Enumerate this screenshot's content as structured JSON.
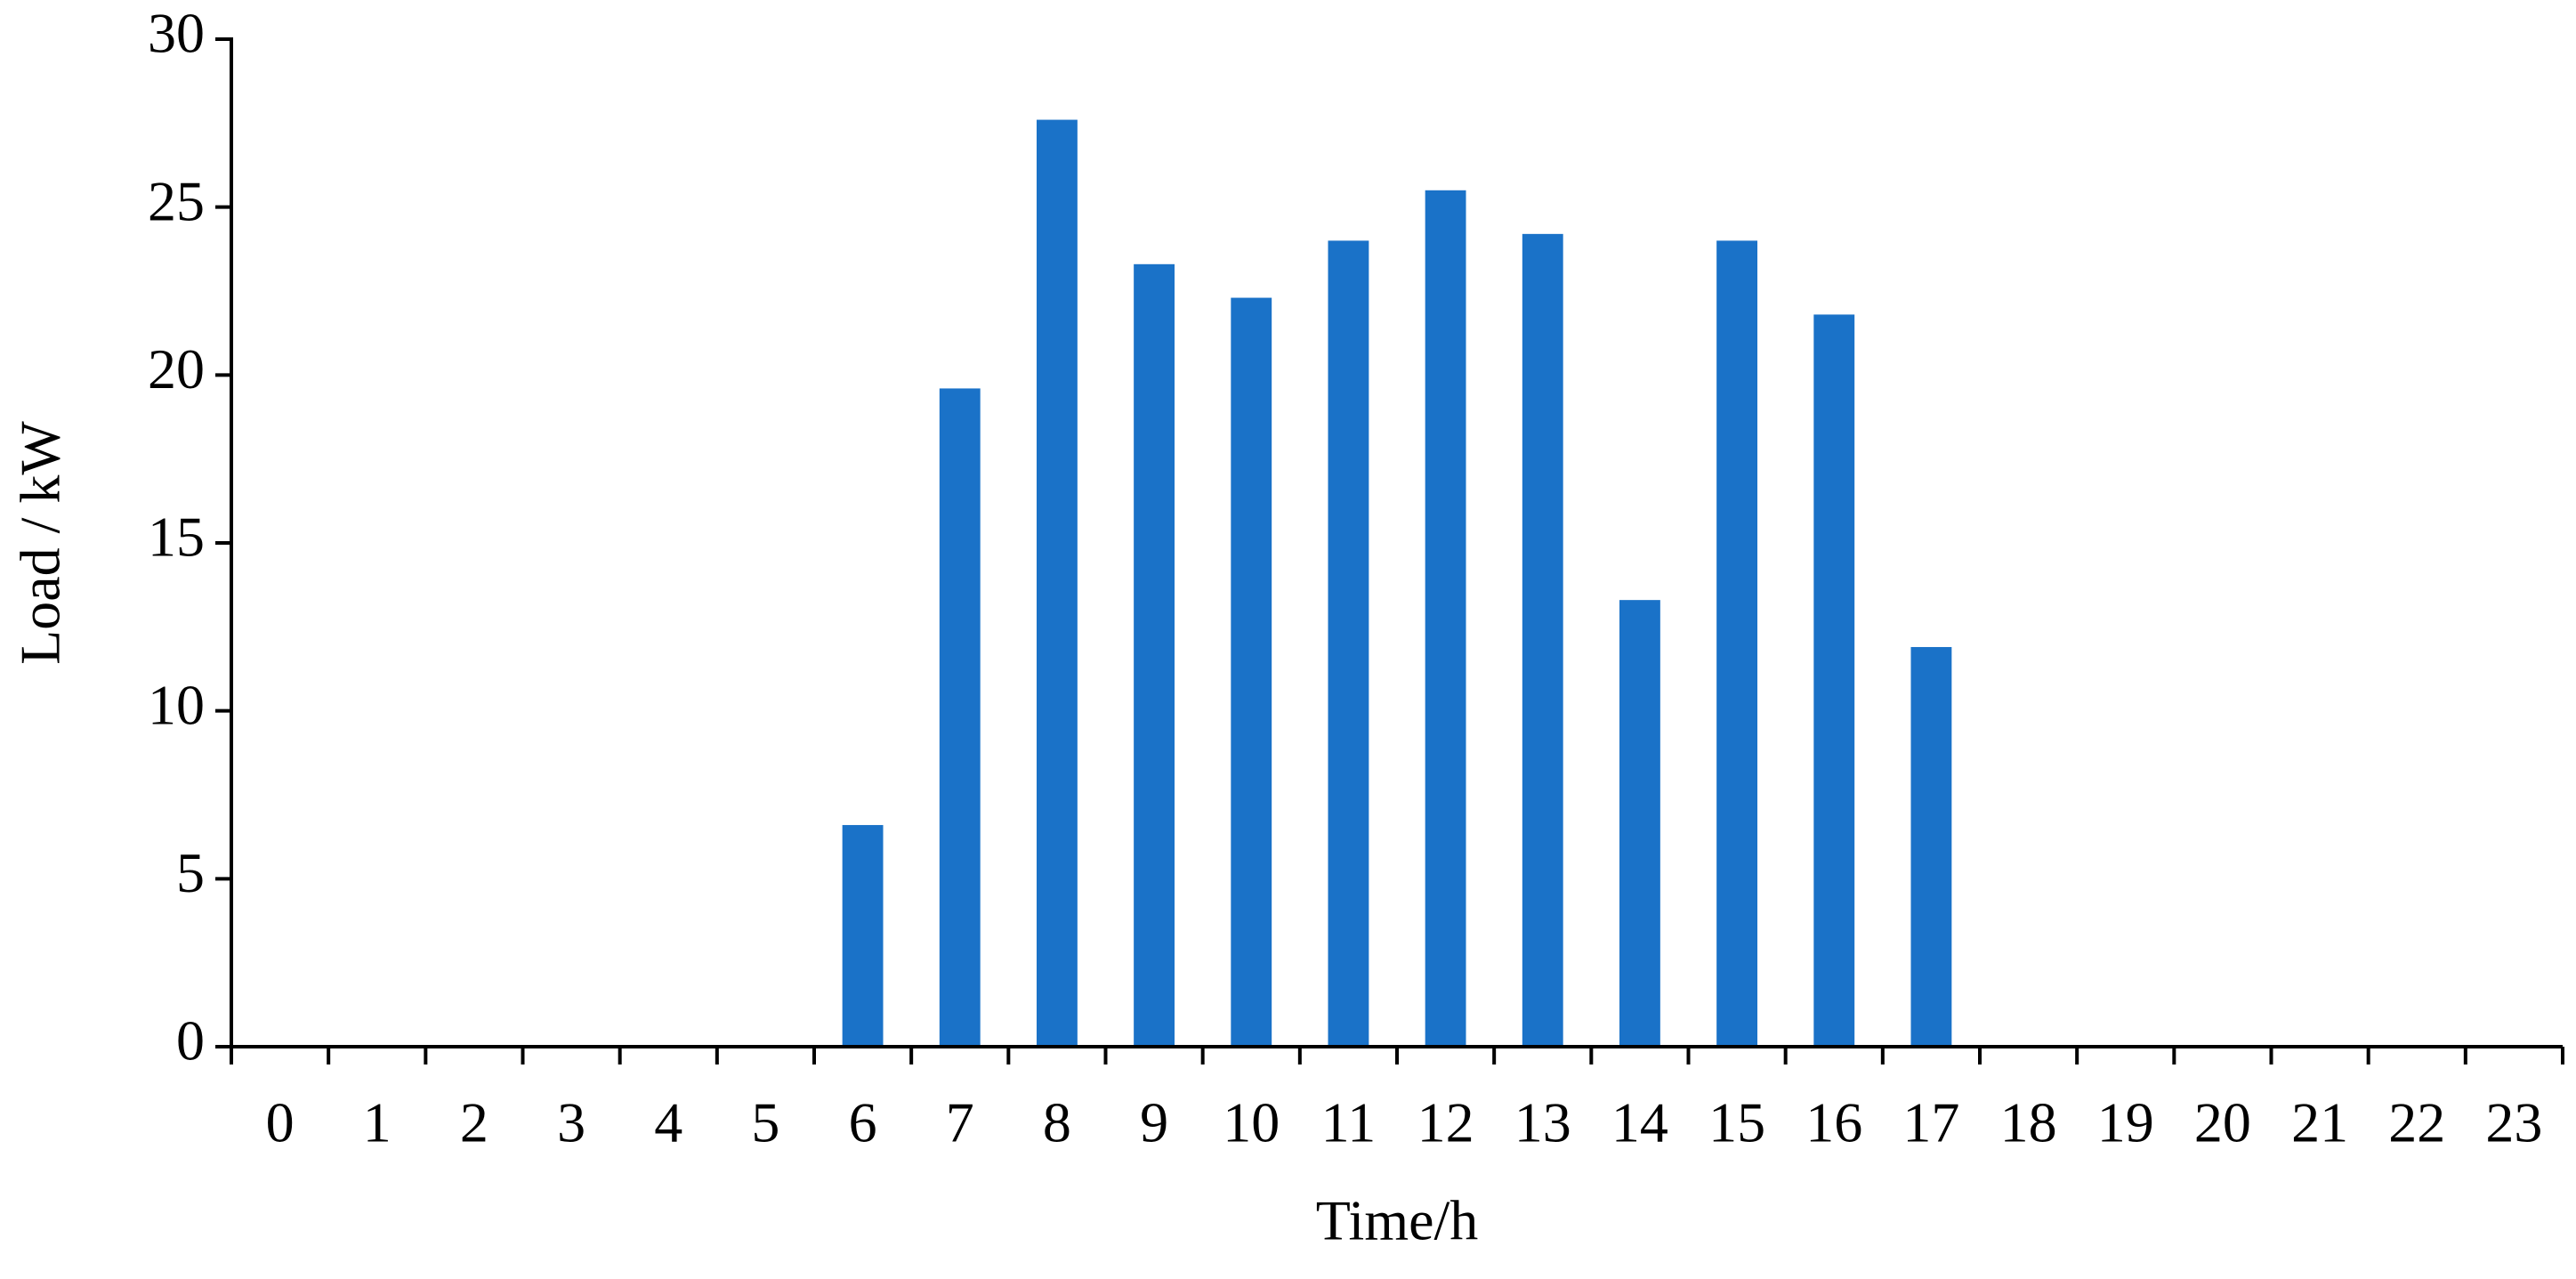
{
  "chart_data": {
    "type": "bar",
    "x_label": "Time/h",
    "y_label": "Load / kW",
    "categories": [
      "0",
      "1",
      "2",
      "3",
      "4",
      "5",
      "6",
      "7",
      "8",
      "9",
      "10",
      "11",
      "12",
      "13",
      "14",
      "15",
      "16",
      "17",
      "18",
      "19",
      "20",
      "21",
      "22",
      "23"
    ],
    "values": [
      0,
      0,
      0,
      0,
      0,
      0,
      6.6,
      19.6,
      27.6,
      23.3,
      22.3,
      24.0,
      25.5,
      24.2,
      13.3,
      24.0,
      21.8,
      11.9,
      0,
      0,
      0,
      0,
      0,
      0
    ],
    "color": "#1a72c8",
    "ylim": [
      0,
      30
    ],
    "yticks": [
      0,
      5,
      10,
      15,
      20,
      25,
      30
    ],
    "grid": false
  }
}
